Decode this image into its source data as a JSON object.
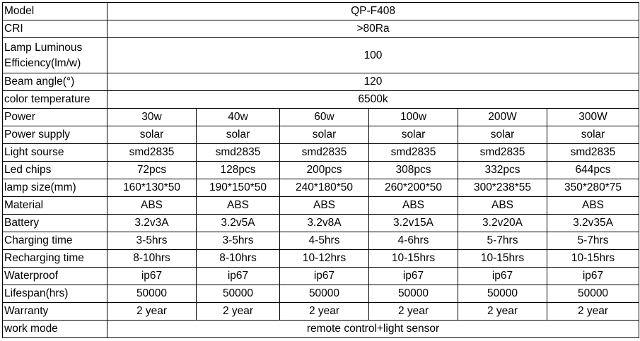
{
  "rows": {
    "model": {
      "label": "Model",
      "value": "QP-F408"
    },
    "cri": {
      "label": "CRI",
      "value": ">80Ra"
    },
    "efficiency": {
      "label": "Lamp Luminous Efficiency(lm/w)",
      "value": "100"
    },
    "beam_angle": {
      "label": "Beam angle(°)",
      "value": "120"
    },
    "color_temp": {
      "label": "color temperature",
      "value": "6500k"
    },
    "power": {
      "label": "Power",
      "values": [
        "30w",
        "40w",
        "60w",
        "100w",
        "200W",
        "300W"
      ]
    },
    "power_supply": {
      "label": "Power supply",
      "values": [
        "solar",
        "solar",
        "solar",
        "solar",
        "solar",
        "solar"
      ]
    },
    "light_source": {
      "label": "Light sourse",
      "values": [
        "smd2835",
        "smd2835",
        "smd2835",
        "smd2835",
        "smd2835",
        "smd2835"
      ]
    },
    "led_chips": {
      "label": "Led chips",
      "values": [
        "72pcs",
        "128pcs",
        "200pcs",
        "308pcs",
        "332pcs",
        "644pcs"
      ]
    },
    "lamp_size": {
      "label": "lamp size(mm)",
      "values": [
        "160*130*50",
        "190*150*50",
        "240*180*50",
        "260*200*50",
        "300*238*55",
        "350*280*75"
      ]
    },
    "material": {
      "label": "Material",
      "values": [
        "ABS",
        "ABS",
        "ABS",
        "ABS",
        "ABS",
        "ABS"
      ]
    },
    "battery": {
      "label": "Battery",
      "values": [
        "3.2v3A",
        "3.2v5A",
        "3.2v8A",
        "3.2v15A",
        "3.2v20A",
        "3.2v35A"
      ]
    },
    "charging_time": {
      "label": "Charging time",
      "values": [
        "3-5hrs",
        "3-5hrs",
        "4-5hrs",
        "4-6hrs",
        "5-7hrs",
        "5-7hrs"
      ]
    },
    "recharging_time": {
      "label": "Recharging time",
      "values": [
        "8-10hrs",
        "8-10hrs",
        "10-12hrs",
        "10-15hrs",
        "10-15hrs",
        "10-15hrs"
      ]
    },
    "waterproof": {
      "label": "Waterproof",
      "values": [
        "ip67",
        "ip67",
        "ip67",
        "ip67",
        "ip67",
        "ip67"
      ]
    },
    "lifespan": {
      "label": "Lifespan(hrs)",
      "values": [
        "50000",
        "50000",
        "50000",
        "50000",
        "50000",
        "50000"
      ]
    },
    "warranty": {
      "label": "Warranty",
      "values": [
        "2 year",
        "2 year",
        "2 year",
        "2 year",
        "2 year",
        "2 year"
      ]
    },
    "work_mode": {
      "label": "work mode",
      "value": "remote control+light sensor"
    }
  }
}
